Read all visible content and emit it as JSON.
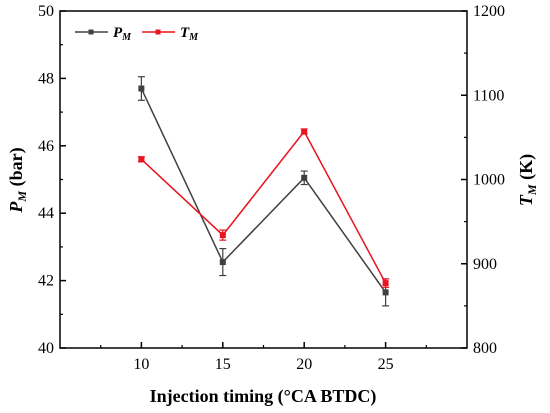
{
  "chart_data": {
    "type": "line",
    "x": [
      10,
      15,
      20,
      25
    ],
    "xlabel": "Injection timing (°CA BTDC)",
    "x_ticks": [
      "10",
      "15",
      "20",
      "25"
    ],
    "xlim": [
      5,
      30
    ],
    "ylabel_left": {
      "main": "P",
      "sub": "M",
      "unit": "(bar)"
    },
    "ylabel_right": {
      "main": "T",
      "sub": "M",
      "unit": "(K)"
    },
    "ylim_left": [
      40,
      50
    ],
    "ylim_right": [
      800,
      1200
    ],
    "y_ticks_left": [
      "40",
      "42",
      "44",
      "46",
      "48",
      "50"
    ],
    "y_ticks_right": [
      "800",
      "900",
      "1000",
      "1100",
      "1200"
    ],
    "grid": false,
    "legend_position": "top-left",
    "series": [
      {
        "name_main": "P",
        "name_sub": "M",
        "axis": "left",
        "color": "#404040",
        "values": [
          47.7,
          42.55,
          45.05,
          41.65
        ],
        "errors": [
          0.35,
          0.4,
          0.2,
          0.4
        ]
      },
      {
        "name_main": "T",
        "name_sub": "M",
        "axis": "right",
        "color": "#e8141e",
        "values": [
          1024,
          934,
          1057,
          877
        ],
        "errors": [
          3,
          6,
          3,
          5
        ]
      }
    ]
  }
}
